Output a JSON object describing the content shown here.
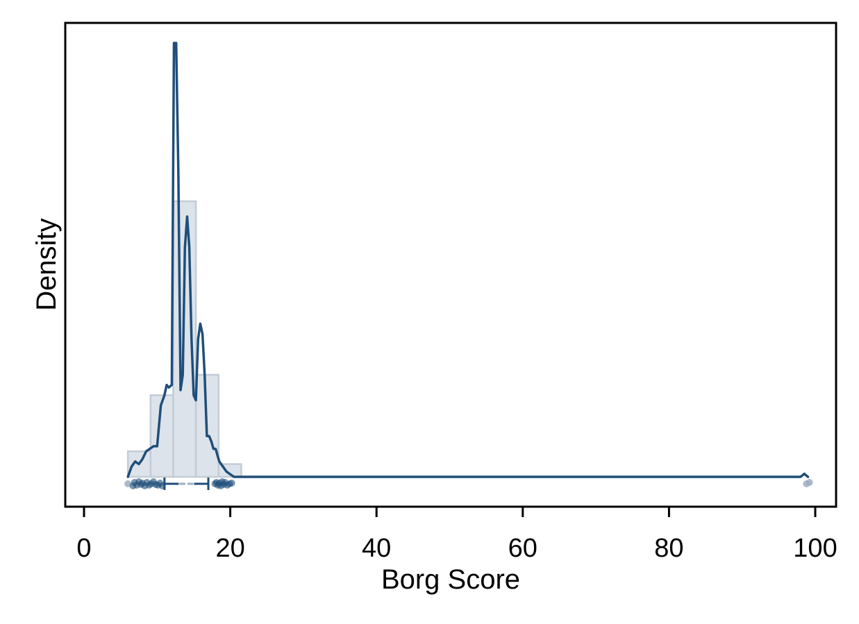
{
  "chart_data": {
    "type": "histogram",
    "xlabel": "Borg Score",
    "ylabel": "Density",
    "xlim": [
      -3.5,
      102
    ],
    "ylim": [
      0,
      1.0
    ],
    "x_ticks": [
      0,
      20,
      40,
      60,
      80,
      100
    ],
    "grid": false,
    "colors": {
      "line": "#1f4e79",
      "bar_fill": "#dde3ea",
      "bar_stroke": "#c3ccd6",
      "points": "#1f4e79",
      "points_faint": "#9eadbf"
    },
    "histogram": {
      "bins": [
        {
          "start": 6,
          "end": 9.1,
          "height": 0.05
        },
        {
          "start": 9.1,
          "end": 12.2,
          "height": 0.16
        },
        {
          "start": 12.2,
          "end": 15.3,
          "height": 0.54
        },
        {
          "start": 15.3,
          "end": 18.4,
          "height": 0.2
        },
        {
          "start": 18.4,
          "end": 21.5,
          "height": 0.025
        }
      ]
    },
    "density_curve": {
      "x": [
        6,
        6.5,
        7,
        7.5,
        8,
        8.5,
        9,
        9.5,
        10,
        10.5,
        11,
        11.3,
        11.6,
        12,
        12.3,
        12.6,
        12.9,
        13.2,
        13.5,
        13.8,
        14.1,
        14.4,
        14.7,
        15.0,
        15.3,
        15.6,
        15.9,
        16.2,
        16.5,
        16.8,
        17.1,
        17.4,
        17.7,
        18.0,
        18.5,
        19,
        19.5,
        20,
        20.5,
        21,
        22,
        30,
        40,
        60,
        80,
        98,
        98.5,
        99
      ],
      "y": [
        0.0,
        0.02,
        0.03,
        0.025,
        0.035,
        0.05,
        0.055,
        0.06,
        0.06,
        0.14,
        0.16,
        0.18,
        0.175,
        0.18,
        0.85,
        0.85,
        0.6,
        0.17,
        0.2,
        0.45,
        0.51,
        0.45,
        0.27,
        0.16,
        0.15,
        0.27,
        0.3,
        0.28,
        0.2,
        0.08,
        0.08,
        0.07,
        0.055,
        0.055,
        0.03,
        0.02,
        0.01,
        0.005,
        0.0,
        0.0,
        0.0,
        0.0,
        0.0,
        0.0,
        0.0,
        0.0,
        0.006,
        0.0
      ]
    },
    "boxplot": {
      "q1": 11.0,
      "median": 14.0,
      "q3": 17.0,
      "whisker_low": 11.0,
      "whisker_high": 17.0,
      "notch_low": 13.0,
      "notch_high": 15.0
    },
    "points": [
      6.0,
      6.7,
      6.9,
      7.2,
      7.5,
      7.8,
      8.0,
      8.3,
      8.6,
      8.9,
      9.2,
      9.5,
      9.8,
      10.1,
      10.4,
      10.7,
      17.9,
      18.1,
      18.3,
      18.5,
      18.7,
      18.9,
      19.1,
      19.3,
      19.6,
      19.9,
      20.2,
      98.8,
      99.2
    ]
  }
}
